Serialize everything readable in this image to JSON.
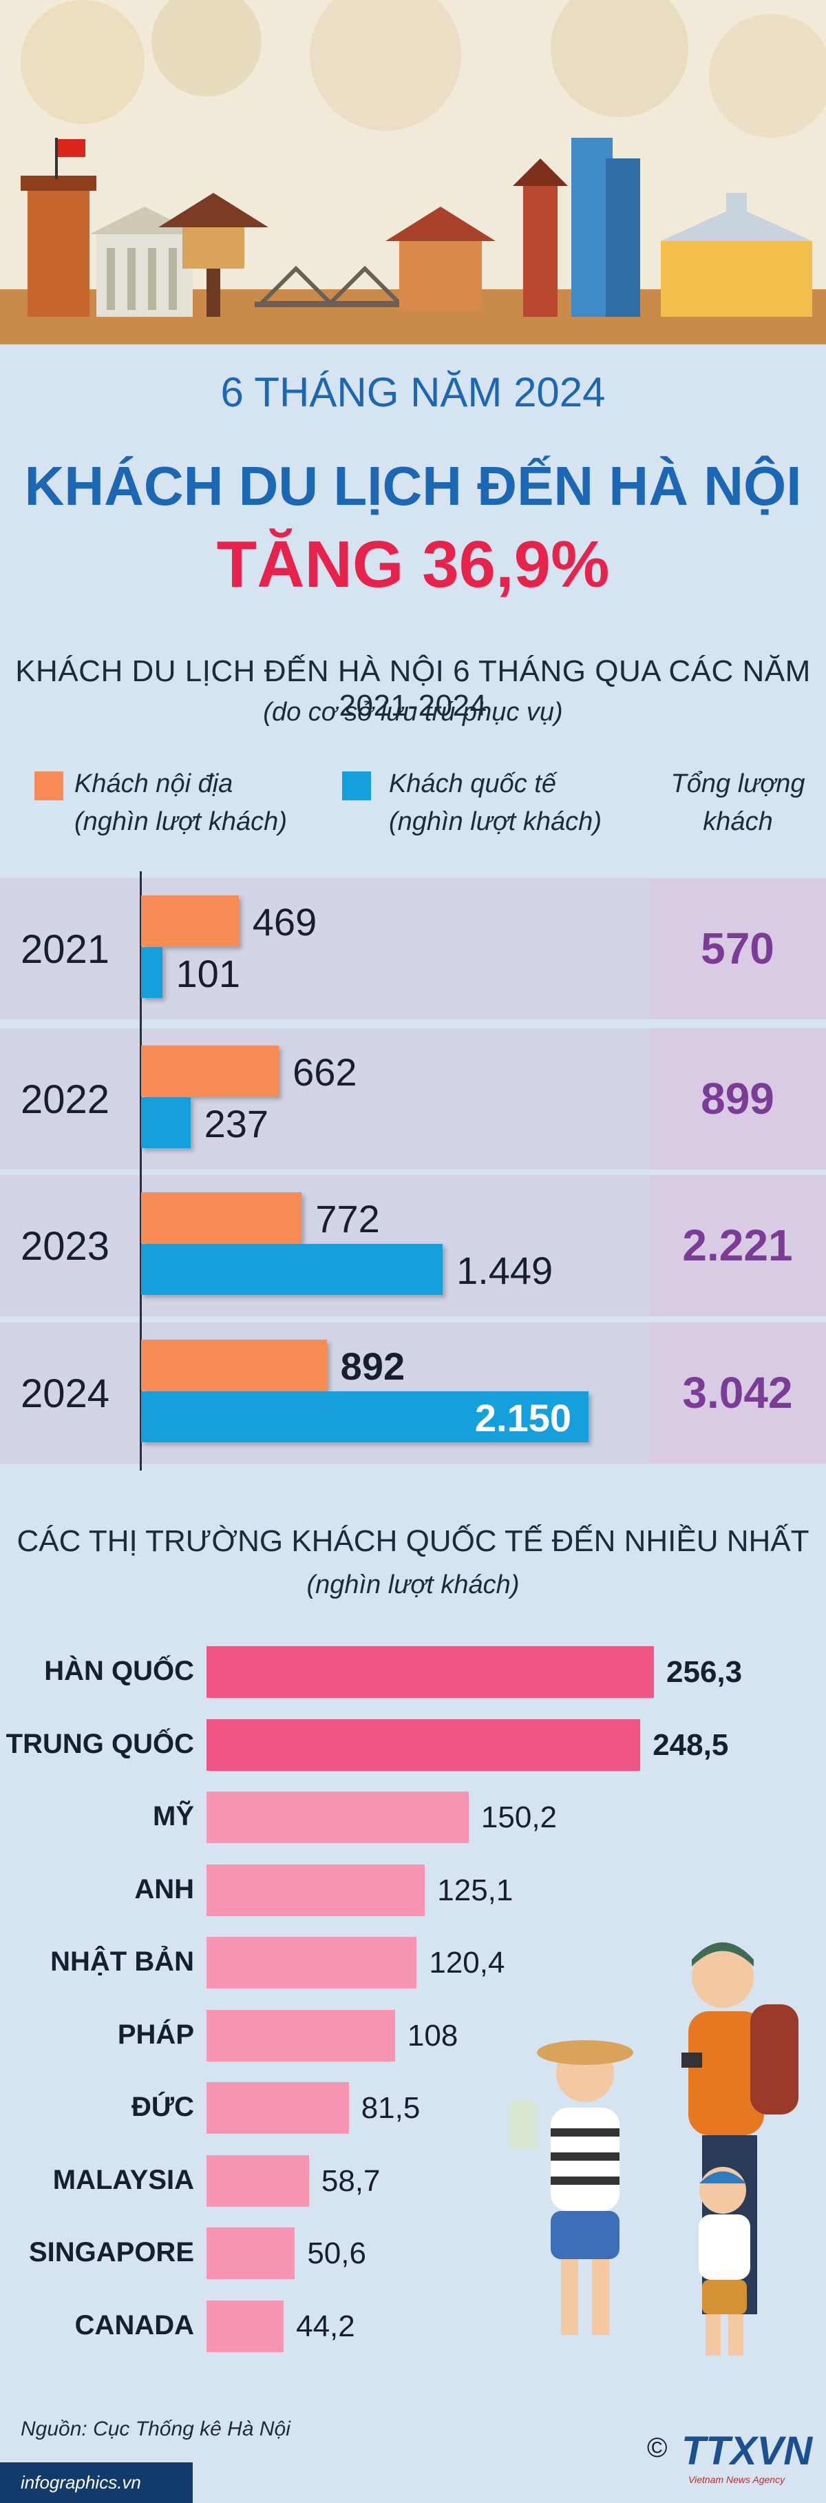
{
  "header": {
    "subtitle": "6 THÁNG NĂM 2024",
    "title": "KHÁCH DU LỊCH ĐẾN HÀ NỘI",
    "highlight": "TĂNG 36,9%"
  },
  "colors": {
    "domestic": "#f98b55",
    "international": "#14a0dc",
    "total_text": "#7a3c97",
    "market_bar_top": "#ef5686",
    "market_bar_rest": "#f795b2",
    "title_blue": "#1b67b3",
    "highlight_red": "#e8234b"
  },
  "chart_data": [
    {
      "type": "bar",
      "orientation": "horizontal",
      "title": "KHÁCH DU LỊCH ĐẾN HÀ NỘI 6 THÁNG QUA CÁC NĂM 2021-2024",
      "subtitle": "(do cơ sở lưu trú phục vụ)",
      "categories": [
        "2021",
        "2022",
        "2023",
        "2024"
      ],
      "series": [
        {
          "name": "Khách nội địa",
          "unit": "(nghìn lượt khách)",
          "values": [
            469,
            662,
            772,
            892
          ],
          "labels": [
            "469",
            "662",
            "772",
            "892"
          ]
        },
        {
          "name": "Khách quốc tế",
          "unit": "(nghìn lượt khách)",
          "values": [
            101,
            237,
            1449,
            2150
          ],
          "labels": [
            "101",
            "237",
            "1.449",
            "2.150"
          ]
        }
      ],
      "total_header": [
        "Tổng lượng",
        "khách"
      ],
      "totals": [
        "570",
        "899",
        "2.221",
        "3.042"
      ],
      "xlim": [
        0,
        2150
      ]
    },
    {
      "type": "bar",
      "orientation": "horizontal",
      "title": "CÁC THỊ TRƯỜNG KHÁCH QUỐC TẾ ĐẾN NHIỀU NHẤT",
      "subtitle": "(nghìn lượt khách)",
      "categories": [
        "HÀN QUỐC",
        "TRUNG QUỐC",
        "MỸ",
        "ANH",
        "NHẬT BẢN",
        "PHÁP",
        "ĐỨC",
        "MALAYSIA",
        "SINGAPORE",
        "CANADA"
      ],
      "values": [
        256.3,
        248.5,
        150.2,
        125.1,
        120.4,
        108,
        81.5,
        58.7,
        50.6,
        44.2
      ],
      "labels": [
        "256,3",
        "248,5",
        "150,2",
        "125,1",
        "120,4",
        "108",
        "81,5",
        "58,7",
        "50,6",
        "44,2"
      ],
      "xlim": [
        0,
        256.3
      ]
    }
  ],
  "footer": {
    "source": "Nguồn: Cục Thống kê Hà Nội",
    "site": "infographics.vn",
    "logo_text": "TTXVN",
    "logo_sub": "Vietnam News Agency",
    "copyright": "©"
  }
}
